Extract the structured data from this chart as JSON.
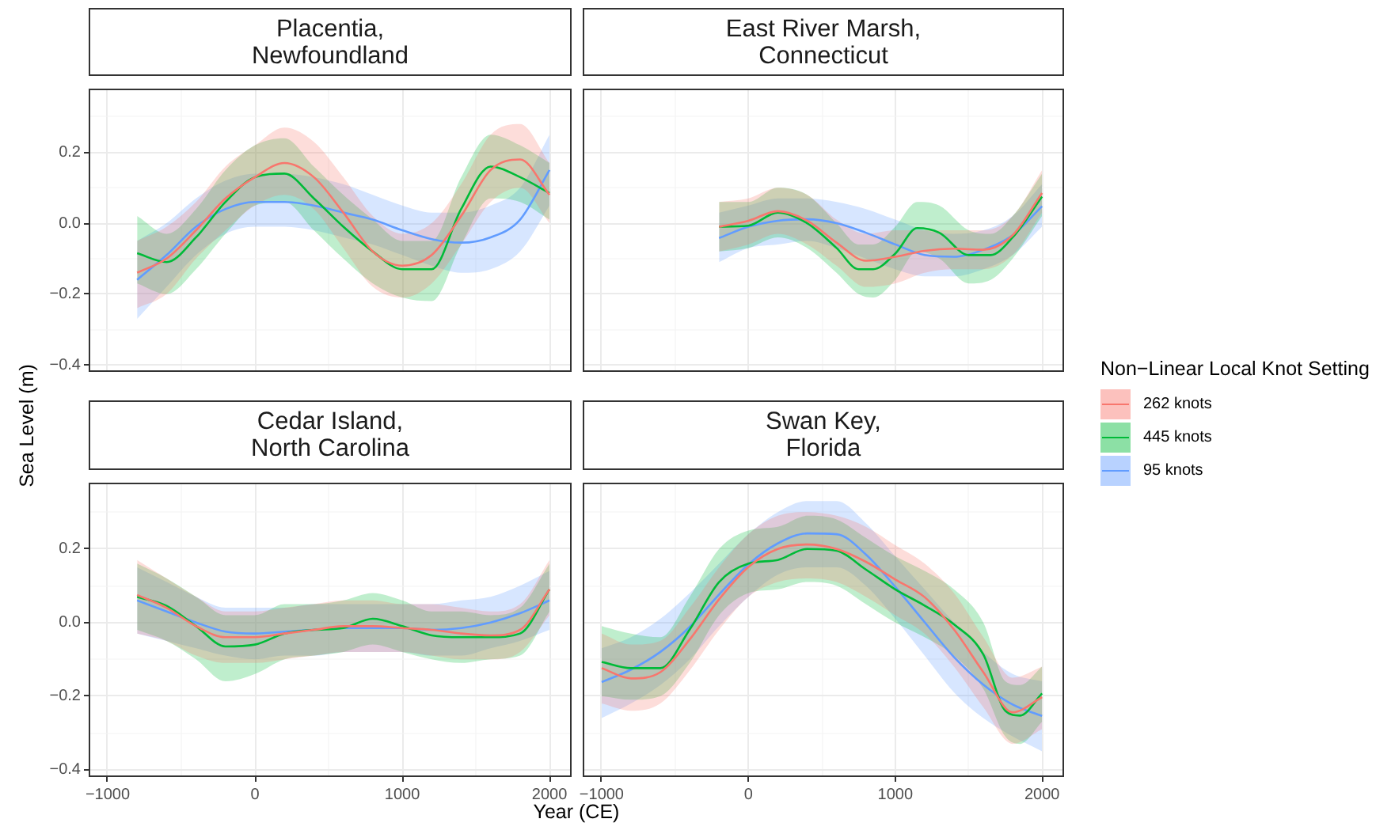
{
  "chart_data": [
    {
      "type": "line",
      "title": "Placentia,\nNewfoundland",
      "ylabel": "Sea Level (m)",
      "legend": "right",
      "legend_title": "Non−Linear Local Knot Setting",
      "xlim": [
        -1129,
        2150
      ],
      "ylim": [
        -0.42,
        0.38
      ],
      "xticks": [
        -1000,
        {
          "value": -500,
          "label": null
        },
        0,
        {
          "value": 500,
          "label": null
        },
        1000,
        {
          "value": 1500,
          "label": null
        },
        2000
      ],
      "yticks": [
        -0.4,
        {
          "value": -0.3,
          "label": null
        },
        -0.2,
        {
          "value": -0.1,
          "label": null
        },
        {
          "value": 0,
          "label": "0.0"
        },
        {
          "value": 0.1,
          "label": null
        },
        0.2,
        {
          "value": 0.3,
          "label": null
        }
      ],
      "grid": true,
      "marker": "none",
      "tick_labels": "y",
      "series": [
        {
          "name": "262 knots",
          "color": "#f8766d",
          "x": [
            -800,
            -600,
            -400,
            -200,
            0,
            200,
            400,
            600,
            800,
            1000,
            1200,
            1400,
            1600,
            1800,
            2000
          ],
          "values": [
            -0.14,
            -0.1,
            -0.02,
            0.07,
            0.13,
            0.17,
            0.13,
            0.03,
            -0.08,
            -0.12,
            -0.09,
            0.02,
            0.15,
            0.18,
            0.08
          ],
          "lower": [
            -0.24,
            -0.2,
            -0.1,
            -0.02,
            0.05,
            0.08,
            0.04,
            -0.07,
            -0.18,
            -0.21,
            -0.17,
            -0.06,
            0.06,
            0.1,
            0.0
          ],
          "upper": [
            -0.05,
            -0.01,
            0.06,
            0.16,
            0.22,
            0.27,
            0.23,
            0.13,
            0.02,
            -0.03,
            0.0,
            0.11,
            0.25,
            0.28,
            0.17
          ]
        },
        {
          "name": "445 knots",
          "color": "#00ba38",
          "x": [
            -800,
            -600,
            -400,
            -200,
            0,
            200,
            400,
            600,
            800,
            1000,
            1200,
            1400,
            1600,
            1800,
            2000
          ],
          "values": [
            -0.085,
            -0.11,
            -0.04,
            0.06,
            0.13,
            0.14,
            0.07,
            -0.01,
            -0.08,
            -0.13,
            -0.13,
            0.04,
            0.16,
            0.13,
            0.085
          ],
          "lower": [
            -0.17,
            -0.2,
            -0.13,
            -0.03,
            0.05,
            0.06,
            -0.02,
            -0.1,
            -0.17,
            -0.21,
            -0.22,
            -0.06,
            0.07,
            0.06,
            0.01
          ],
          "upper": [
            0.02,
            -0.03,
            0.04,
            0.15,
            0.22,
            0.24,
            0.16,
            0.08,
            0.01,
            -0.05,
            -0.05,
            0.13,
            0.25,
            0.22,
            0.17
          ]
        },
        {
          "name": "95 knots",
          "color": "#619cff",
          "x": [
            -800,
            -600,
            -400,
            -200,
            0,
            200,
            400,
            600,
            800,
            1000,
            1200,
            1400,
            1600,
            1800,
            2000
          ],
          "values": [
            -0.16,
            -0.09,
            -0.01,
            0.04,
            0.06,
            0.06,
            0.05,
            0.03,
            0.01,
            -0.02,
            -0.045,
            -0.055,
            -0.04,
            0.01,
            0.15
          ],
          "lower": [
            -0.27,
            -0.18,
            -0.09,
            -0.03,
            -0.01,
            -0.01,
            -0.02,
            -0.04,
            -0.06,
            -0.09,
            -0.12,
            -0.14,
            -0.13,
            -0.08,
            0.05
          ],
          "upper": [
            -0.05,
            0.0,
            0.07,
            0.12,
            0.14,
            0.14,
            0.13,
            0.11,
            0.08,
            0.05,
            0.03,
            0.03,
            0.05,
            0.1,
            0.25
          ]
        }
      ]
    },
    {
      "type": "line",
      "title": "East River Marsh,\nConnecticut",
      "xlim": [
        -1129,
        2150
      ],
      "ylim": [
        -0.42,
        0.38
      ],
      "xticks": [
        -1000,
        {
          "value": -500,
          "label": null
        },
        0,
        {
          "value": 500,
          "label": null
        },
        1000,
        {
          "value": 1500,
          "label": null
        },
        2000
      ],
      "yticks": [
        -0.4,
        {
          "value": -0.3,
          "label": null
        },
        -0.2,
        {
          "value": -0.1,
          "label": null
        },
        0.0,
        {
          "value": 0.1,
          "label": null
        },
        0.2,
        {
          "value": 0.3,
          "label": null
        }
      ],
      "grid": true,
      "marker": "none",
      "tick_labels": false,
      "series": [
        {
          "color": "#f8766d",
          "x": [
            -200,
            0,
            200,
            400,
            600,
            800,
            1000,
            1200,
            1400,
            1600,
            1800,
            2000
          ],
          "values": [
            -0.01,
            0.007,
            0.034,
            0.007,
            -0.055,
            -0.106,
            -0.095,
            -0.078,
            -0.072,
            -0.075,
            -0.034,
            0.085
          ],
          "lower": [
            -0.08,
            -0.06,
            -0.03,
            -0.06,
            -0.12,
            -0.18,
            -0.17,
            -0.14,
            -0.13,
            -0.13,
            -0.09,
            0.03
          ],
          "upper": [
            0.06,
            0.07,
            0.1,
            0.08,
            0.01,
            -0.03,
            -0.02,
            -0.02,
            -0.02,
            -0.02,
            0.02,
            0.15
          ]
        },
        {
          "color": "#00ba38",
          "x": [
            -200,
            0,
            200,
            400,
            600,
            750,
            850,
            1000,
            1150,
            1300,
            1500,
            1650,
            1800,
            2000
          ],
          "values": [
            -0.01,
            -0.007,
            0.03,
            0.0,
            -0.07,
            -0.13,
            -0.13,
            -0.086,
            -0.014,
            -0.027,
            -0.09,
            -0.09,
            -0.04,
            0.075
          ],
          "lower": [
            -0.08,
            -0.07,
            -0.04,
            -0.07,
            -0.14,
            -0.2,
            -0.21,
            -0.16,
            -0.08,
            -0.1,
            -0.17,
            -0.16,
            -0.1,
            0.02
          ],
          "upper": [
            0.06,
            0.06,
            0.1,
            0.08,
            0.0,
            -0.06,
            -0.06,
            -0.01,
            0.06,
            0.05,
            -0.02,
            -0.03,
            0.02,
            0.14
          ]
        },
        {
          "color": "#619cff",
          "x": [
            -200,
            0,
            200,
            400,
            600,
            800,
            1000,
            1200,
            1400,
            1600,
            1800,
            2000
          ],
          "values": [
            -0.042,
            -0.01,
            0.007,
            0.011,
            0.0,
            -0.027,
            -0.06,
            -0.09,
            -0.095,
            -0.075,
            -0.034,
            0.048
          ],
          "lower": [
            -0.11,
            -0.07,
            -0.06,
            -0.05,
            -0.07,
            -0.1,
            -0.13,
            -0.15,
            -0.15,
            -0.13,
            -0.09,
            -0.01
          ],
          "upper": [
            0.03,
            0.05,
            0.07,
            0.07,
            0.06,
            0.04,
            0.01,
            -0.02,
            -0.03,
            -0.02,
            0.02,
            0.11
          ]
        }
      ]
    },
    {
      "type": "line",
      "title": "Cedar Island,\nNorth Carolina",
      "xlabel": "Year (CE)",
      "xlim": [
        -1129,
        2150
      ],
      "ylim": [
        -0.42,
        0.38
      ],
      "xticks": [
        -1000,
        {
          "value": -500,
          "label": null
        },
        0,
        {
          "value": 500,
          "label": null
        },
        1000,
        {
          "value": 1500,
          "label": null
        },
        2000
      ],
      "yticks": [
        -0.4,
        {
          "value": -0.3,
          "label": null
        },
        -0.2,
        {
          "value": -0.1,
          "label": null
        },
        {
          "value": 0,
          "label": "0.0"
        },
        {
          "value": 0.1,
          "label": null
        },
        0.2,
        {
          "value": 0.3,
          "label": null
        }
      ],
      "grid": true,
      "marker": "none",
      "series": [
        {
          "color": "#f8766d",
          "x": [
            -800,
            -600,
            -400,
            -200,
            0,
            200,
            400,
            600,
            800,
            1000,
            1200,
            1400,
            1600,
            1800,
            2000
          ],
          "values": [
            0.075,
            0.04,
            -0.01,
            -0.04,
            -0.04,
            -0.03,
            -0.02,
            -0.01,
            -0.01,
            -0.015,
            -0.02,
            -0.03,
            -0.035,
            -0.02,
            0.09
          ],
          "lower": [
            -0.03,
            -0.05,
            -0.09,
            -0.11,
            -0.11,
            -0.1,
            -0.09,
            -0.08,
            -0.08,
            -0.08,
            -0.09,
            -0.1,
            -0.1,
            -0.08,
            0.02
          ],
          "upper": [
            0.17,
            0.12,
            0.07,
            0.03,
            0.03,
            0.04,
            0.05,
            0.06,
            0.06,
            0.05,
            0.05,
            0.04,
            0.03,
            0.05,
            0.17
          ]
        },
        {
          "color": "#00ba38",
          "x": [
            -800,
            -600,
            -400,
            -200,
            0,
            200,
            400,
            600,
            800,
            1000,
            1200,
            1400,
            1600,
            1800,
            2000
          ],
          "values": [
            0.07,
            0.045,
            -0.01,
            -0.065,
            -0.06,
            -0.03,
            -0.02,
            -0.015,
            0.01,
            -0.01,
            -0.035,
            -0.04,
            -0.04,
            -0.03,
            0.09
          ],
          "lower": [
            -0.02,
            -0.05,
            -0.1,
            -0.16,
            -0.14,
            -0.1,
            -0.09,
            -0.08,
            -0.06,
            -0.08,
            -0.1,
            -0.11,
            -0.1,
            -0.09,
            0.03
          ],
          "upper": [
            0.16,
            0.12,
            0.07,
            0.02,
            0.02,
            0.05,
            0.05,
            0.06,
            0.08,
            0.06,
            0.03,
            0.03,
            0.02,
            0.04,
            0.16
          ]
        },
        {
          "color": "#619cff",
          "x": [
            -800,
            -600,
            -400,
            -200,
            0,
            200,
            400,
            600,
            800,
            1000,
            1200,
            1400,
            1600,
            1800,
            2000
          ],
          "values": [
            0.06,
            0.03,
            0.0,
            -0.025,
            -0.03,
            -0.025,
            -0.02,
            -0.015,
            -0.015,
            -0.015,
            -0.02,
            -0.015,
            0.0,
            0.025,
            0.06
          ],
          "lower": [
            -0.03,
            -0.05,
            -0.07,
            -0.09,
            -0.1,
            -0.09,
            -0.09,
            -0.08,
            -0.08,
            -0.08,
            -0.09,
            -0.09,
            -0.07,
            -0.05,
            -0.02
          ],
          "upper": [
            0.15,
            0.11,
            0.07,
            0.04,
            0.04,
            0.04,
            0.05,
            0.05,
            0.05,
            0.05,
            0.05,
            0.06,
            0.07,
            0.1,
            0.14
          ]
        }
      ]
    },
    {
      "type": "line",
      "title": "Swan Key,\nFlorida",
      "xlim": [
        -1129,
        2150
      ],
      "ylim": [
        -0.42,
        0.38
      ],
      "xticks": [
        -1000,
        {
          "value": -500,
          "label": null
        },
        0,
        {
          "value": 500,
          "label": null
        },
        1000,
        {
          "value": 1500,
          "label": null
        },
        2000
      ],
      "yticks": [
        -0.4,
        {
          "value": -0.3,
          "label": null
        },
        -0.2,
        {
          "value": -0.1,
          "label": null
        },
        0.0,
        {
          "value": 0.1,
          "label": null
        },
        0.2,
        {
          "value": 0.3,
          "label": null
        }
      ],
      "grid": true,
      "marker": "none",
      "tick_labels": "x",
      "series": [
        {
          "color": "#f8766d",
          "x": [
            -1000,
            -800,
            -600,
            -400,
            -200,
            0,
            200,
            400,
            600,
            800,
            1000,
            1200,
            1400,
            1600,
            1800,
            2000
          ],
          "values": [
            -0.124,
            -0.152,
            -0.135,
            -0.046,
            0.063,
            0.151,
            0.2,
            0.212,
            0.2,
            0.165,
            0.117,
            0.069,
            -0.019,
            -0.135,
            -0.244,
            -0.203
          ],
          "lower": [
            -0.22,
            -0.24,
            -0.22,
            -0.13,
            -0.02,
            0.07,
            0.11,
            0.12,
            0.11,
            0.07,
            0.02,
            -0.03,
            -0.12,
            -0.23,
            -0.33,
            -0.29
          ],
          "upper": [
            -0.03,
            -0.06,
            -0.05,
            0.04,
            0.15,
            0.24,
            0.29,
            0.3,
            0.29,
            0.26,
            0.21,
            0.16,
            0.08,
            -0.04,
            -0.15,
            -0.12
          ]
        },
        {
          "color": "#00ba38",
          "x": [
            -1000,
            -800,
            -600,
            -400,
            -200,
            0,
            200,
            400,
            600,
            800,
            1000,
            1200,
            1400,
            1600,
            1750,
            1850,
            2000
          ],
          "values": [
            -0.107,
            -0.124,
            -0.124,
            -0.019,
            0.11,
            0.16,
            0.17,
            0.2,
            0.195,
            0.144,
            0.09,
            0.046,
            -0.005,
            -0.087,
            -0.24,
            -0.253,
            -0.193
          ],
          "lower": [
            -0.2,
            -0.21,
            -0.2,
            -0.11,
            0.02,
            0.08,
            0.09,
            0.11,
            0.1,
            0.05,
            0.0,
            -0.04,
            -0.09,
            -0.18,
            -0.31,
            -0.33,
            -0.27
          ],
          "upper": [
            -0.01,
            -0.03,
            -0.04,
            0.07,
            0.2,
            0.25,
            0.26,
            0.29,
            0.28,
            0.23,
            0.18,
            0.14,
            0.09,
            0.0,
            -0.16,
            -0.17,
            -0.12
          ]
        },
        {
          "color": "#619cff",
          "x": [
            -1000,
            -800,
            -600,
            -400,
            -200,
            0,
            200,
            400,
            600,
            800,
            1000,
            1200,
            1400,
            1600,
            1800,
            2000
          ],
          "values": [
            -0.162,
            -0.128,
            -0.08,
            -0.012,
            0.076,
            0.158,
            0.215,
            0.242,
            0.24,
            0.185,
            0.097,
            0.001,
            -0.094,
            -0.169,
            -0.223,
            -0.254
          ],
          "lower": [
            -0.26,
            -0.22,
            -0.17,
            -0.1,
            -0.01,
            0.07,
            0.13,
            0.15,
            0.15,
            0.1,
            0.01,
            -0.09,
            -0.19,
            -0.26,
            -0.31,
            -0.35
          ],
          "upper": [
            -0.07,
            -0.04,
            0.01,
            0.08,
            0.16,
            0.24,
            0.3,
            0.33,
            0.33,
            0.27,
            0.18,
            0.09,
            0.0,
            -0.08,
            -0.14,
            -0.16
          ]
        }
      ]
    }
  ]
}
